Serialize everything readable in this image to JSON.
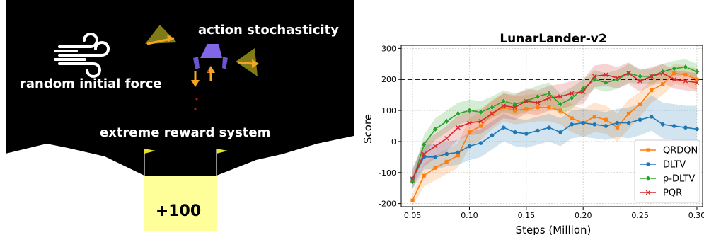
{
  "scene": {
    "label_action": "action stochasticity",
    "label_force": "random initial force",
    "label_reward": "extreme reward system",
    "pad_reward": "+100",
    "colors": {
      "sky": "#000000",
      "ground": "#ffffff",
      "pad": "#ffff99",
      "lander": "#8166e6",
      "flag": "#e8e12a",
      "arrow": "#f5a623"
    },
    "icons": [
      "wind-icon",
      "lander-icon",
      "flag-icon",
      "thrust-arrow-icon"
    ]
  },
  "chart_data": {
    "type": "line",
    "title": "LunarLander-v2",
    "xlabel": "Steps (Million)",
    "ylabel": "Score",
    "xlim": [
      0.04,
      0.305
    ],
    "ylim": [
      -210,
      310
    ],
    "xticks": [
      0.05,
      0.1,
      0.15,
      0.2,
      0.25,
      0.3
    ],
    "xtick_labels": [
      "0.05",
      "0.10",
      "0.15",
      "0.20",
      "0.25",
      "0.30"
    ],
    "yticks": [
      -200,
      -100,
      0,
      100,
      200,
      300
    ],
    "grid": true,
    "reference_line": 200,
    "legend_position": "lower-right",
    "x": [
      0.05,
      0.06,
      0.07,
      0.08,
      0.09,
      0.1,
      0.11,
      0.12,
      0.13,
      0.14,
      0.15,
      0.16,
      0.17,
      0.18,
      0.19,
      0.2,
      0.21,
      0.22,
      0.23,
      0.24,
      0.25,
      0.26,
      0.27,
      0.28,
      0.29,
      0.3
    ],
    "series": [
      {
        "name": "QRDQN",
        "color": "#ff7f0e",
        "marker": "square",
        "values": [
          -190,
          -110,
          -85,
          -65,
          -45,
          30,
          50,
          90,
          110,
          100,
          105,
          110,
          110,
          100,
          75,
          60,
          80,
          70,
          45,
          90,
          120,
          165,
          185,
          220,
          215,
          200
        ],
        "lower": [
          -205,
          -145,
          -125,
          -105,
          -85,
          -20,
          5,
          40,
          65,
          55,
          60,
          65,
          65,
          55,
          30,
          15,
          30,
          25,
          0,
          40,
          80,
          125,
          150,
          185,
          180,
          165
        ],
        "upper": [
          -170,
          -70,
          -45,
          -25,
          -5,
          75,
          95,
          135,
          155,
          145,
          150,
          155,
          155,
          145,
          120,
          105,
          125,
          115,
          90,
          135,
          160,
          200,
          220,
          250,
          245,
          235
        ]
      },
      {
        "name": "DLTV",
        "color": "#1f77b4",
        "marker": "circle",
        "values": [
          -120,
          -50,
          -50,
          -40,
          -35,
          -15,
          -5,
          20,
          45,
          30,
          25,
          35,
          45,
          30,
          55,
          60,
          55,
          50,
          60,
          60,
          70,
          80,
          55,
          50,
          45,
          40
        ],
        "lower": [
          -155,
          -90,
          -90,
          -80,
          -75,
          -60,
          -50,
          -25,
          0,
          -15,
          -20,
          -10,
          0,
          -15,
          10,
          15,
          10,
          5,
          15,
          10,
          20,
          35,
          10,
          5,
          0,
          -5
        ],
        "upper": [
          -85,
          -10,
          -10,
          0,
          5,
          30,
          40,
          65,
          90,
          75,
          70,
          80,
          90,
          75,
          100,
          105,
          100,
          95,
          105,
          110,
          120,
          150,
          125,
          120,
          115,
          115
        ]
      },
      {
        "name": "p-DLTV",
        "color": "#2ca02c",
        "marker": "diamond",
        "values": [
          -130,
          -10,
          40,
          65,
          90,
          100,
          95,
          110,
          130,
          120,
          130,
          145,
          155,
          120,
          140,
          170,
          200,
          190,
          200,
          220,
          210,
          210,
          225,
          235,
          240,
          225
        ],
        "lower": [
          -150,
          -40,
          5,
          30,
          55,
          65,
          60,
          75,
          95,
          85,
          95,
          110,
          120,
          85,
          105,
          140,
          170,
          160,
          170,
          190,
          185,
          185,
          200,
          210,
          215,
          200
        ],
        "upper": [
          -110,
          20,
          75,
          100,
          125,
          135,
          130,
          145,
          165,
          155,
          165,
          180,
          190,
          155,
          175,
          200,
          230,
          220,
          230,
          250,
          235,
          235,
          250,
          260,
          265,
          250
        ]
      },
      {
        "name": "PQR",
        "color": "#d62728",
        "marker": "x",
        "values": [
          -120,
          -40,
          -15,
          10,
          45,
          60,
          65,
          90,
          115,
          110,
          130,
          125,
          140,
          145,
          155,
          160,
          210,
          215,
          205,
          220,
          195,
          210,
          220,
          200,
          195,
          190
        ],
        "lower": [
          -150,
          -80,
          -55,
          -30,
          5,
          20,
          25,
          50,
          75,
          70,
          90,
          85,
          100,
          105,
          115,
          120,
          175,
          180,
          170,
          185,
          160,
          180,
          190,
          170,
          165,
          160
        ],
        "upper": [
          -90,
          0,
          25,
          50,
          85,
          100,
          105,
          130,
          155,
          150,
          170,
          165,
          180,
          185,
          195,
          200,
          245,
          250,
          240,
          255,
          230,
          240,
          250,
          230,
          225,
          220
        ]
      }
    ]
  }
}
